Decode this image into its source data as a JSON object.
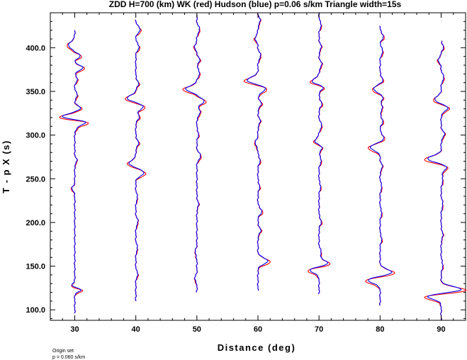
{
  "chart_data": {
    "type": "line",
    "title": "ZDD H=700 (km) WK (red) Hudson (blue) p=0.06 s/km Triangle width=15s",
    "xlabel": "Distance (deg)",
    "ylabel": "T - p X (s)",
    "xlim": [
      26,
      94
    ],
    "ylim": [
      88,
      440
    ],
    "x_ticks": [
      "30",
      "40",
      "50",
      "60",
      "70",
      "80",
      "90"
    ],
    "y_ticks": [
      "100.0",
      "150.0",
      "200.0",
      "250.0",
      "300.0",
      "350.0",
      "400.0"
    ],
    "grid": false,
    "colors": {
      "WK": "#ff0000",
      "Hudson": "#0000ff"
    },
    "series": [
      {
        "name": "WK",
        "color": "#ff0000"
      },
      {
        "name": "Hudson",
        "color": "#0000ff"
      }
    ],
    "traces": [
      {
        "distance": 30,
        "t_start": 96,
        "t_end": 420,
        "wiggles": [
          [
            127,
            -0.6,
            3
          ],
          [
            122,
            1.2,
            3
          ],
          [
            238,
            -0.5,
            4
          ],
          [
            270,
            0.4,
            4
          ],
          [
            307,
            0.4,
            3
          ],
          [
            314,
            2.2,
            4
          ],
          [
            320,
            -2.5,
            4
          ],
          [
            330,
            1.0,
            4
          ],
          [
            345,
            0.5,
            4
          ],
          [
            363,
            0.5,
            4
          ],
          [
            376,
            1.5,
            4
          ],
          [
            390,
            1.0,
            4
          ],
          [
            402,
            -1.1,
            6
          ]
        ]
      },
      {
        "distance": 40,
        "t_start": 110,
        "t_end": 432,
        "wiggles": [
          [
            140,
            0.4,
            4
          ],
          [
            170,
            0.3,
            5
          ],
          [
            200,
            0.4,
            5
          ],
          [
            228,
            0.3,
            5
          ],
          [
            256,
            1.5,
            5
          ],
          [
            267,
            -1.2,
            5
          ],
          [
            290,
            0.5,
            5
          ],
          [
            320,
            0.6,
            5
          ],
          [
            332,
            1.4,
            5
          ],
          [
            341,
            -1.6,
            5
          ],
          [
            358,
            0.5,
            5
          ],
          [
            400,
            0.6,
            5
          ],
          [
            420,
            0.8,
            5
          ]
        ]
      },
      {
        "distance": 50,
        "t_start": 120,
        "t_end": 438,
        "wiggles": [
          [
            135,
            -0.4,
            4
          ],
          [
            165,
            -0.3,
            5
          ],
          [
            220,
            0.3,
            5
          ],
          [
            275,
            0.7,
            5
          ],
          [
            300,
            0.3,
            5
          ],
          [
            325,
            0.6,
            5
          ],
          [
            338,
            1.3,
            5
          ],
          [
            352,
            -2.0,
            5
          ],
          [
            370,
            0.5,
            5
          ],
          [
            385,
            0.5,
            5
          ],
          [
            400,
            -0.4,
            5
          ],
          [
            420,
            0.5,
            5
          ]
        ]
      },
      {
        "distance": 60,
        "t_start": 122,
        "t_end": 440,
        "wiggles": [
          [
            155,
            1.8,
            5
          ],
          [
            190,
            0.5,
            5
          ],
          [
            212,
            0.7,
            5
          ],
          [
            240,
            0.3,
            5
          ],
          [
            270,
            0.4,
            5
          ],
          [
            290,
            -0.5,
            5
          ],
          [
            315,
            0.4,
            5
          ],
          [
            335,
            0.6,
            5
          ],
          [
            352,
            1.4,
            5
          ],
          [
            362,
            -2.0,
            5
          ],
          [
            390,
            0.5,
            5
          ],
          [
            410,
            -0.5,
            5
          ],
          [
            430,
            0.4,
            5
          ]
        ]
      },
      {
        "distance": 70,
        "t_start": 118,
        "t_end": 440,
        "wiggles": [
          [
            145,
            -1.8,
            5
          ],
          [
            152,
            1.8,
            5
          ],
          [
            165,
            0.4,
            5
          ],
          [
            200,
            0.4,
            5
          ],
          [
            240,
            0.3,
            5
          ],
          [
            270,
            0.4,
            5
          ],
          [
            285,
            0.6,
            5
          ],
          [
            292,
            -0.8,
            5
          ],
          [
            310,
            0.5,
            5
          ],
          [
            335,
            0.5,
            5
          ],
          [
            355,
            1.1,
            5
          ],
          [
            360,
            -1.6,
            5
          ],
          [
            380,
            0.5,
            5
          ],
          [
            400,
            0.4,
            5
          ],
          [
            425,
            0.4,
            5
          ]
        ]
      },
      {
        "distance": 80,
        "t_start": 105,
        "t_end": 425,
        "wiggles": [
          [
            133,
            -2.2,
            5
          ],
          [
            142,
            2.2,
            5
          ],
          [
            180,
            0.3,
            5
          ],
          [
            210,
            0.3,
            5
          ],
          [
            240,
            0.3,
            5
          ],
          [
            263,
            0.4,
            5
          ],
          [
            285,
            -1.8,
            5
          ],
          [
            296,
            0.7,
            5
          ],
          [
            315,
            0.5,
            5
          ],
          [
            330,
            0.4,
            5
          ],
          [
            342,
            0.5,
            5
          ],
          [
            352,
            -1.2,
            5
          ],
          [
            362,
            0.5,
            5
          ],
          [
            395,
            0.5,
            5
          ],
          [
            412,
            0.6,
            5
          ]
        ]
      },
      {
        "distance": 90,
        "t_start": 88,
        "t_end": 408,
        "wiggles": [
          [
            115,
            -2.8,
            5
          ],
          [
            122,
            4.0,
            5
          ],
          [
            150,
            0.3,
            6
          ],
          [
            185,
            0.3,
            6
          ],
          [
            220,
            0.3,
            6
          ],
          [
            248,
            0.3,
            6
          ],
          [
            262,
            1.0,
            5
          ],
          [
            272,
            -2.5,
            5
          ],
          [
            300,
            0.6,
            5
          ],
          [
            330,
            1.2,
            5
          ],
          [
            340,
            -1.2,
            5
          ],
          [
            365,
            0.5,
            5
          ],
          [
            385,
            -0.5,
            5
          ],
          [
            400,
            0.4,
            5
          ]
        ]
      }
    ]
  },
  "footer": {
    "line1": "Origin set",
    "line2": "p = 0.060 s/km"
  }
}
